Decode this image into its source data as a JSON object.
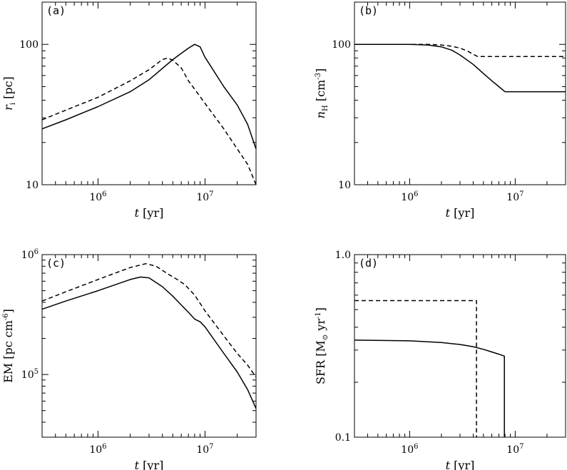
{
  "chart_data": [
    {
      "type": "line",
      "panel_label": "(a)",
      "xlabel": {
        "var": "t",
        "unit": " [yr]"
      },
      "ylabel": {
        "var": "r",
        "sub": "i",
        "unit": " [pc]"
      },
      "xscale": "log",
      "yscale": "log",
      "xlim": [
        300000,
        30000000
      ],
      "ylim": [
        10,
        200
      ],
      "xticks": [
        {
          "value": 1000000,
          "base": "10",
          "exp": "6"
        },
        {
          "value": 10000000,
          "base": "10",
          "exp": "7"
        }
      ],
      "yticks": [
        {
          "value": 10,
          "label": "10"
        },
        {
          "value": 100,
          "label": "100"
        }
      ],
      "series": [
        {
          "style": "solid",
          "x": [
            300000,
            500000,
            1000000,
            2000000,
            3000000,
            5000000,
            7000000,
            8000000,
            9000000,
            10000000,
            15000000,
            20000000,
            25000000,
            30000000
          ],
          "y": [
            25,
            29,
            36,
            46,
            56,
            78,
            94,
            100,
            96,
            81,
            50,
            37,
            27,
            18
          ]
        },
        {
          "style": "dashed",
          "x": [
            300000,
            500000,
            1000000,
            2000000,
            3000000,
            4000000,
            4500000,
            5000000,
            6000000,
            7000000,
            8000000,
            10000000,
            15000000,
            20000000,
            25000000,
            30000000
          ],
          "y": [
            29,
            34,
            42,
            55,
            66,
            78,
            80,
            77,
            68,
            55,
            48,
            38,
            25,
            18,
            14,
            10
          ]
        }
      ]
    },
    {
      "type": "line",
      "panel_label": "(b)",
      "xlabel": {
        "var": "t",
        "unit": " [yr]"
      },
      "ylabel": {
        "var": "n",
        "sub": "H",
        "unit": " [cm",
        "sup": "-3",
        "unit2": "]"
      },
      "xscale": "log",
      "yscale": "log",
      "xlim": [
        300000,
        30000000
      ],
      "ylim": [
        10,
        200
      ],
      "xticks": [
        {
          "value": 1000000,
          "base": "10",
          "exp": "6"
        },
        {
          "value": 10000000,
          "base": "10",
          "exp": "7"
        }
      ],
      "yticks": [
        {
          "value": 10,
          "label": "10"
        },
        {
          "value": 100,
          "label": "100"
        }
      ],
      "series": [
        {
          "style": "solid",
          "x": [
            300000,
            1000000,
            1500000,
            2000000,
            2500000,
            3000000,
            4000000,
            5000000,
            6000000,
            7000000,
            8000000,
            30000000
          ],
          "y": [
            100,
            100,
            99,
            96,
            91,
            84,
            72,
            62,
            55,
            50,
            46,
            46
          ]
        },
        {
          "style": "dashed",
          "x": [
            300000,
            1500000,
            2000000,
            2500000,
            3000000,
            3500000,
            4000000,
            4400000,
            30000000
          ],
          "y": [
            100,
            100,
            99,
            97,
            94,
            90,
            85,
            82,
            82
          ]
        }
      ]
    },
    {
      "type": "line",
      "panel_label": "(c)",
      "xlabel": {
        "var": "t",
        "unit": " [yr]"
      },
      "ylabel": {
        "text": "EM [pc cm",
        "sup": "-6",
        "text2": "]"
      },
      "xscale": "log",
      "yscale": "log",
      "xlim": [
        300000,
        30000000
      ],
      "ylim": [
        30000,
        1000000
      ],
      "xticks": [
        {
          "value": 1000000,
          "base": "10",
          "exp": "6"
        },
        {
          "value": 10000000,
          "base": "10",
          "exp": "7"
        }
      ],
      "yticks": [
        {
          "value": 100000,
          "base": "10",
          "exp": "5"
        },
        {
          "value": 1000000,
          "base": "10",
          "exp": "6"
        }
      ],
      "series": [
        {
          "style": "solid",
          "x": [
            300000,
            500000,
            1000000,
            2000000,
            2500000,
            3000000,
            4000000,
            5000000,
            6000000,
            7000000,
            8000000,
            9000000,
            10000000,
            15000000,
            20000000,
            25000000,
            30000000
          ],
          "y": [
            350000,
            410000,
            500000,
            620000,
            650000,
            640000,
            540000,
            450000,
            380000,
            330000,
            290000,
            275000,
            250000,
            150000,
            105000,
            75000,
            52000
          ]
        },
        {
          "style": "dashed",
          "x": [
            300000,
            500000,
            1000000,
            2000000,
            2800000,
            3500000,
            4500000,
            5500000,
            6500000,
            8000000,
            10000000,
            15000000,
            20000000,
            25000000,
            30000000
          ],
          "y": [
            410000,
            490000,
            620000,
            780000,
            840000,
            800000,
            690000,
            620000,
            560000,
            460000,
            340000,
            210000,
            150000,
            120000,
            95000
          ]
        }
      ]
    },
    {
      "type": "line",
      "panel_label": "(d)",
      "xlabel": {
        "var": "t",
        "unit": " [yr]"
      },
      "ylabel": {
        "text": "SFR [M",
        "sub_sym": "⊙",
        "text2": " yr",
        "sup": "-1",
        "text3": "]"
      },
      "xscale": "log",
      "yscale": "log",
      "xlim": [
        300000,
        30000000
      ],
      "ylim": [
        0.1,
        1.0
      ],
      "xticks": [
        {
          "value": 1000000,
          "base": "10",
          "exp": "6"
        },
        {
          "value": 10000000,
          "base": "10",
          "exp": "7"
        }
      ],
      "yticks": [
        {
          "value": 0.1,
          "label": "0.1"
        },
        {
          "value": 1.0,
          "label": "1.0"
        }
      ],
      "series": [
        {
          "style": "solid",
          "x": [
            300000,
            1000000,
            2000000,
            3000000,
            4000000,
            5000000,
            6000000,
            7000000,
            7900000,
            7900000
          ],
          "y": [
            0.34,
            0.337,
            0.33,
            0.322,
            0.313,
            0.303,
            0.293,
            0.285,
            0.278,
            0.1
          ]
        },
        {
          "style": "dashed",
          "x": [
            300000,
            4300000,
            4300000
          ],
          "y": [
            0.56,
            0.56,
            0.1
          ]
        }
      ]
    }
  ]
}
